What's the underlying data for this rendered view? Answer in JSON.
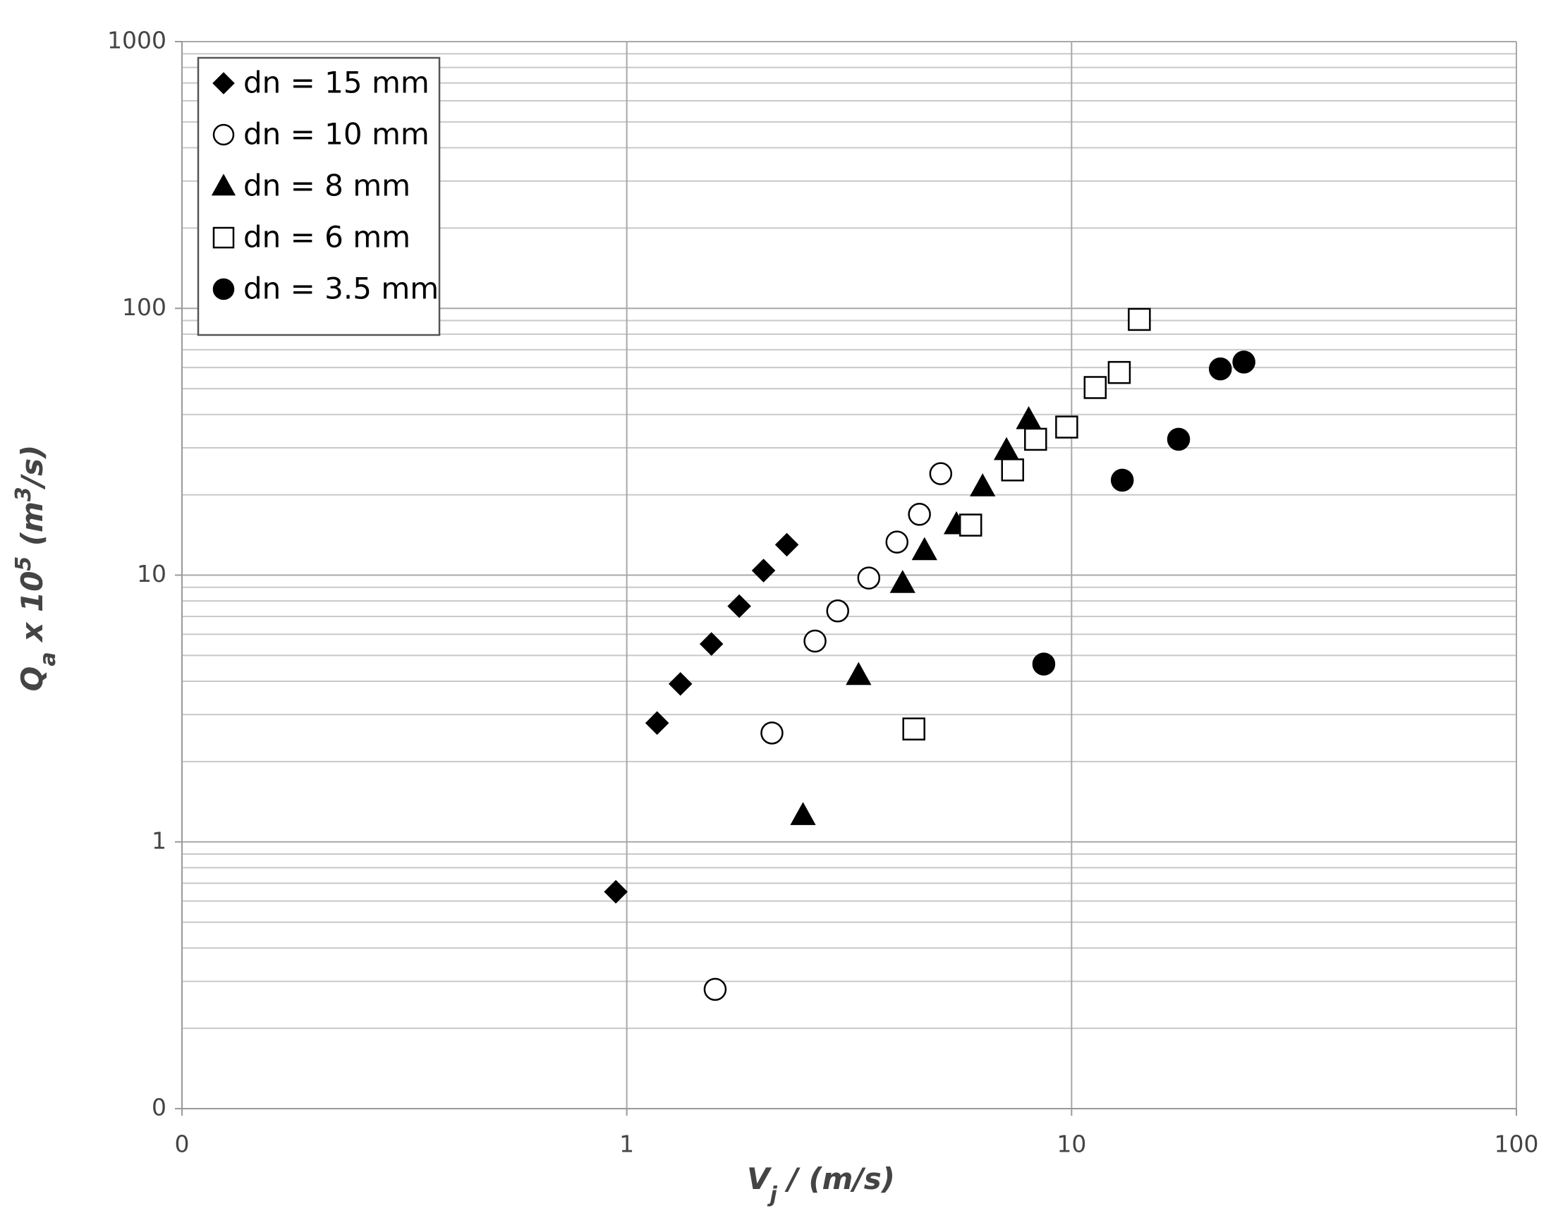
{
  "chart_data": {
    "type": "scatter",
    "xscale": "log",
    "yscale": "log",
    "xlim": [
      0.1,
      100
    ],
    "ylim": [
      0.1,
      1000
    ],
    "xticks": [
      {
        "value": 0.1,
        "label": "0"
      },
      1,
      10,
      100
    ],
    "yticks": [
      {
        "value": 0.1,
        "label": "0"
      },
      1,
      10,
      100,
      1000
    ],
    "yminorticks": [
      0.2,
      0.3,
      0.4,
      0.5,
      0.6,
      0.7,
      0.8,
      0.9,
      2,
      3,
      4,
      5,
      6,
      7,
      8,
      9,
      20,
      30,
      40,
      50,
      60,
      70,
      80,
      90,
      200,
      300,
      400,
      500,
      600,
      700,
      800,
      900
    ],
    "grid": true,
    "legend_position": "upper left",
    "xlabel": [
      {
        "text": "V"
      },
      {
        "text": "j",
        "sub": true
      },
      {
        "text": " / (m/s)"
      }
    ],
    "ylabel": [
      {
        "text": "Q"
      },
      {
        "text": "a",
        "sub": true
      },
      {
        "text": " x 10"
      },
      {
        "text": "5",
        "sup": true
      },
      {
        "text": " (m"
      },
      {
        "text": "3",
        "sup": true
      },
      {
        "text": "/s)"
      }
    ],
    "series": [
      {
        "name": "dn = 15 mm",
        "marker": "diamond",
        "filled": true,
        "color": "#000000",
        "x": [
          0.945,
          1.17,
          1.32,
          1.55,
          1.79,
          2.03,
          2.29
        ],
        "values": [
          0.65,
          2.79,
          3.91,
          5.52,
          7.65,
          10.4,
          13.0
        ]
      },
      {
        "name": "dn = 10 mm",
        "marker": "circle",
        "filled": false,
        "color": "#000000",
        "x": [
          1.58,
          2.12,
          2.65,
          2.98,
          3.5,
          4.05,
          4.55,
          5.08
        ],
        "values": [
          0.28,
          2.56,
          5.66,
          7.34,
          9.75,
          13.3,
          16.9,
          24.0
        ]
      },
      {
        "name": "dn = 8 mm",
        "marker": "triangle",
        "filled": true,
        "color": "#000000",
        "x": [
          2.49,
          3.32,
          4.17,
          4.67,
          5.51,
          6.31,
          7.14,
          8.01
        ],
        "values": [
          1.26,
          4.22,
          9.34,
          12.4,
          15.5,
          21.5,
          29.4,
          38.4
        ]
      },
      {
        "name": "dn = 6 mm",
        "marker": "square",
        "filled": false,
        "color": "#000000",
        "x": [
          4.42,
          5.93,
          7.37,
          8.3,
          9.75,
          11.3,
          12.8,
          14.2
        ],
        "values": [
          2.65,
          15.4,
          24.8,
          32.3,
          35.9,
          50.5,
          57.5,
          90.9
        ]
      },
      {
        "name": "dn = 3.5 mm",
        "marker": "circle",
        "filled": true,
        "color": "#000000",
        "x": [
          8.66,
          13.0,
          17.4,
          21.6,
          24.4
        ],
        "values": [
          4.64,
          22.7,
          32.3,
          59.3,
          62.9
        ]
      }
    ]
  }
}
